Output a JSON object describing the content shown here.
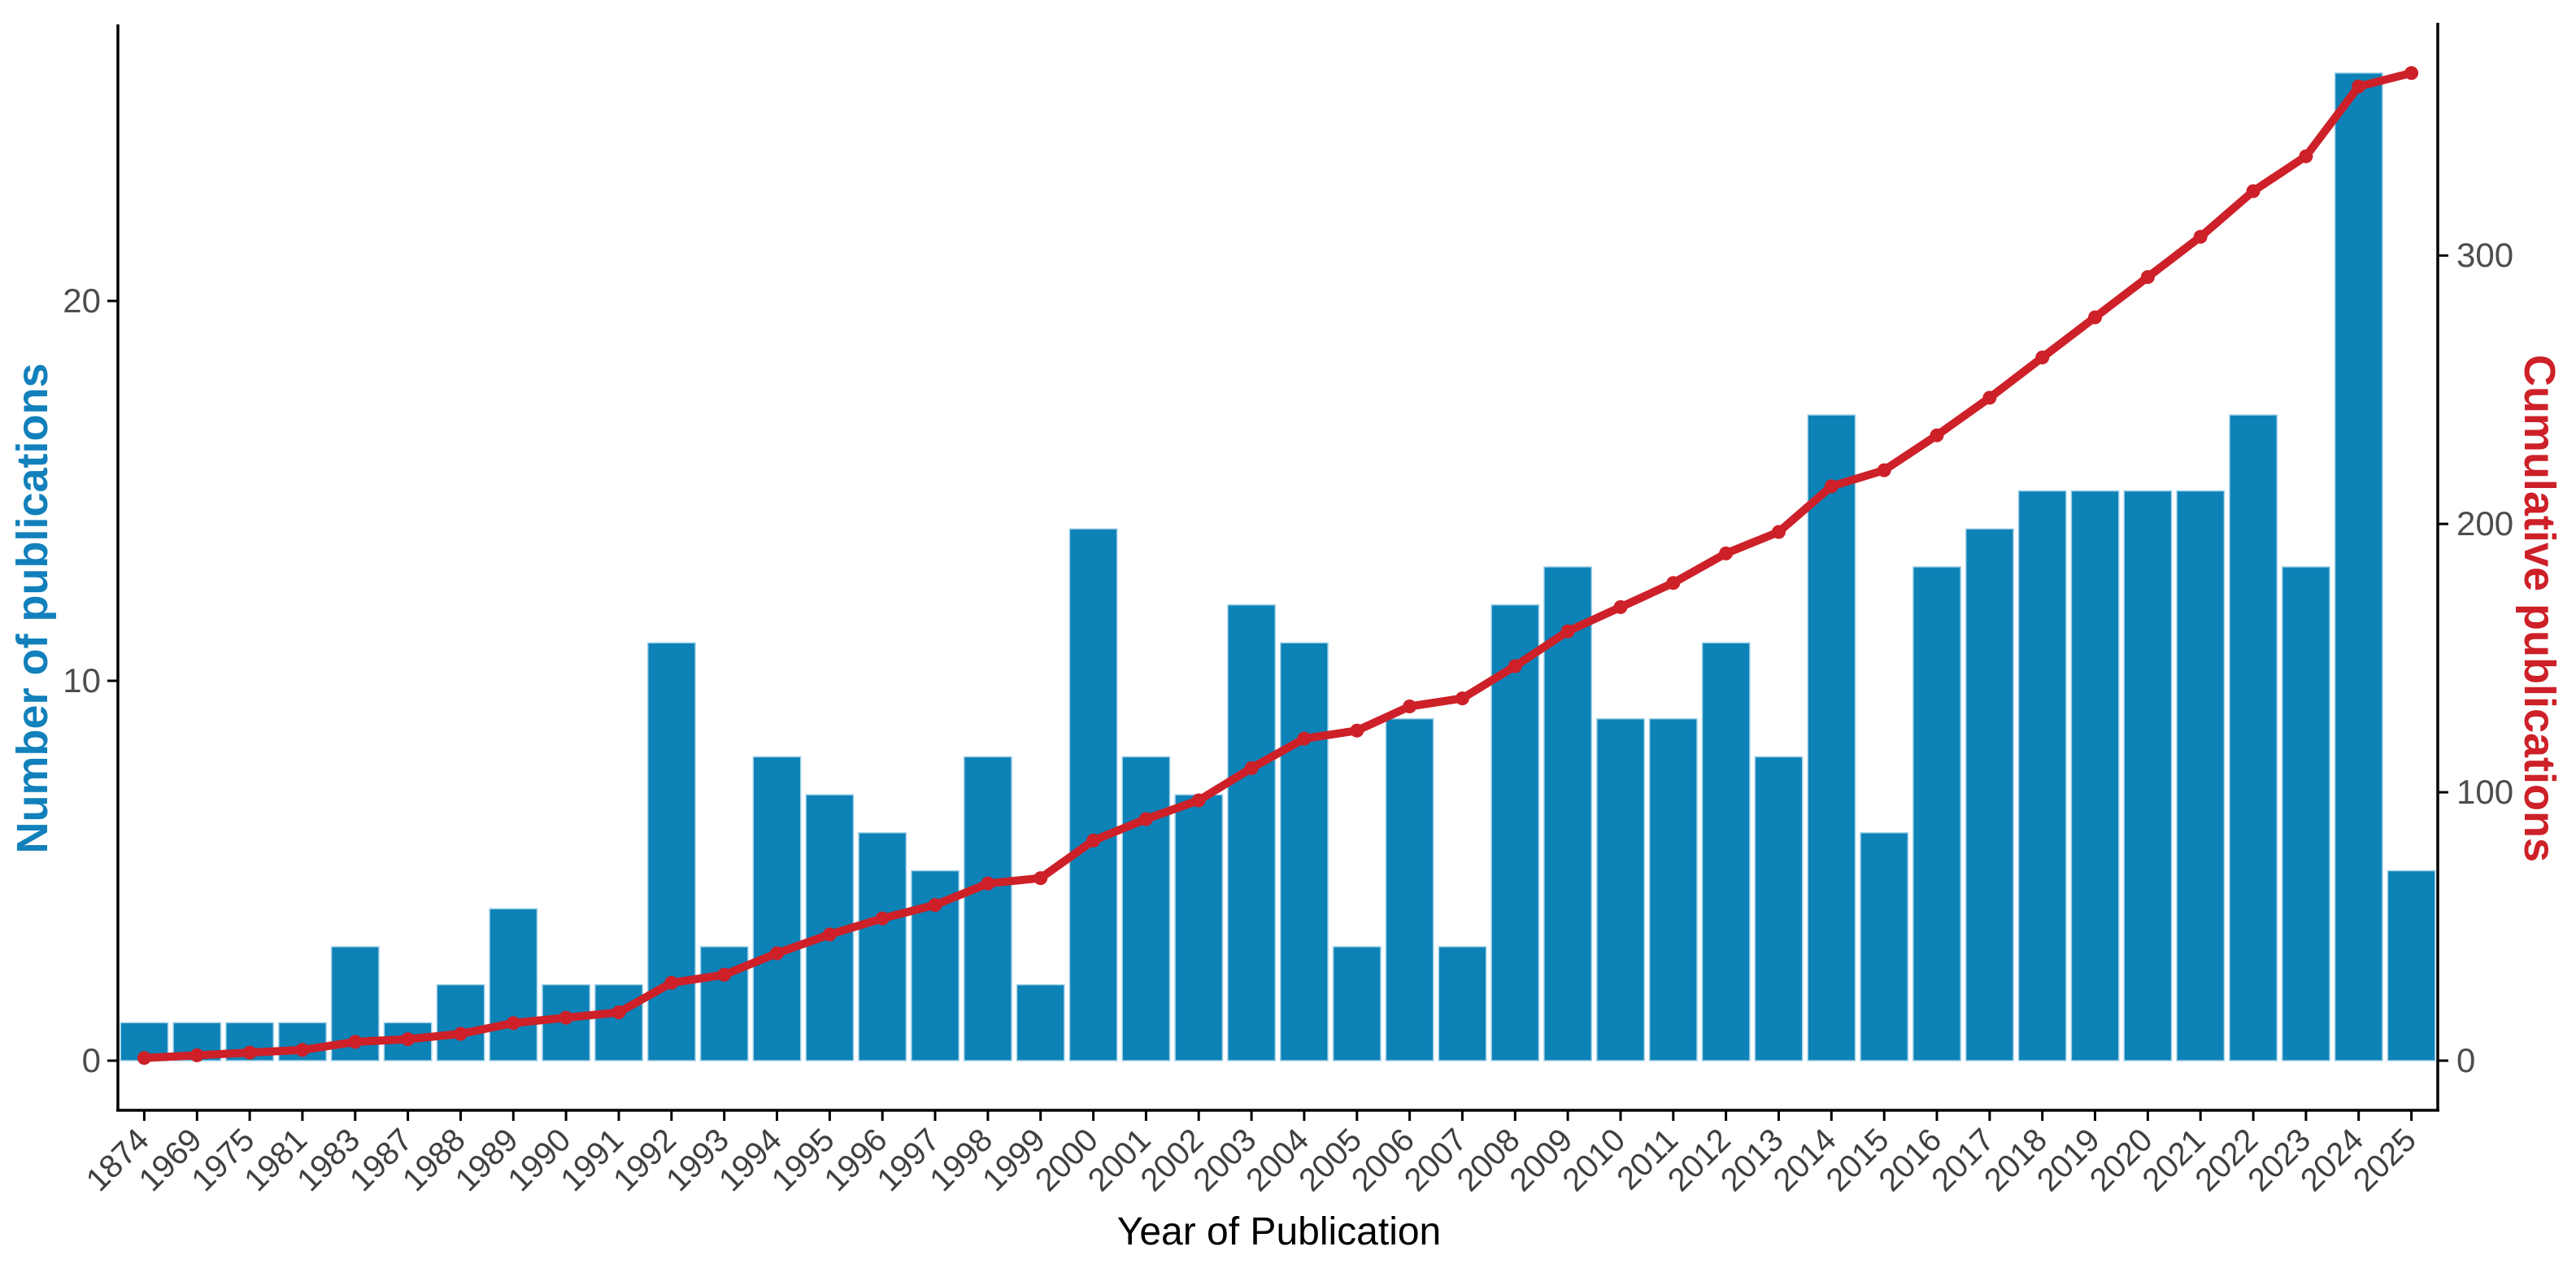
{
  "chart_data": {
    "type": "bar+line",
    "title": "",
    "xlabel": "Year of Publication",
    "ylabel_left": "Number of publications",
    "ylabel_right": "Cumulative publications",
    "categories": [
      "1874",
      "1969",
      "1975",
      "1981",
      "1983",
      "1987",
      "1988",
      "1989",
      "1990",
      "1991",
      "1992",
      "1993",
      "1994",
      "1995",
      "1996",
      "1997",
      "1998",
      "1999",
      "2000",
      "2001",
      "2002",
      "2003",
      "2004",
      "2005",
      "2006",
      "2007",
      "2008",
      "2009",
      "2010",
      "2011",
      "2012",
      "2013",
      "2014",
      "2015",
      "2016",
      "2017",
      "2018",
      "2019",
      "2020",
      "2021",
      "2022",
      "2023",
      "2024",
      "2025"
    ],
    "series": [
      {
        "name": "Number of publications",
        "type": "bar",
        "axis": "left",
        "values": [
          1,
          1,
          1,
          1,
          3,
          1,
          2,
          4,
          2,
          2,
          11,
          3,
          8,
          7,
          6,
          5,
          8,
          2,
          14,
          8,
          7,
          12,
          11,
          3,
          9,
          3,
          12,
          13,
          9,
          9,
          11,
          8,
          17,
          6,
          13,
          14,
          15,
          15,
          15,
          15,
          17,
          13,
          26,
          5
        ]
      },
      {
        "name": "Cumulative publications",
        "type": "line",
        "axis": "right",
        "values": [
          1,
          2,
          3,
          4,
          7,
          8,
          10,
          14,
          16,
          18,
          29,
          32,
          40,
          47,
          53,
          58,
          66,
          68,
          82,
          90,
          97,
          109,
          120,
          123,
          132,
          135,
          147,
          160,
          169,
          178,
          189,
          197,
          214,
          220,
          233,
          247,
          262,
          277,
          292,
          307,
          324,
          337,
          363,
          368
        ]
      }
    ],
    "left_axis": {
      "ticks": [
        0,
        10,
        20
      ],
      "range": [
        0,
        26
      ]
    },
    "right_axis": {
      "ticks": [
        0,
        100,
        200,
        300
      ],
      "range": [
        0,
        368
      ]
    },
    "grid": false,
    "legend": "none"
  },
  "colors": {
    "bar_fill": "#0d82b7",
    "bar_edge": "#a6d3e8",
    "line": "#cd2028",
    "left_title": "#1280bb",
    "right_title": "#cd2028",
    "y_tick_label": "#4d4d4d",
    "x_tick_label": "#404040",
    "axis_line": "#000000",
    "x_title": "#000000",
    "background": "#ffffff"
  }
}
